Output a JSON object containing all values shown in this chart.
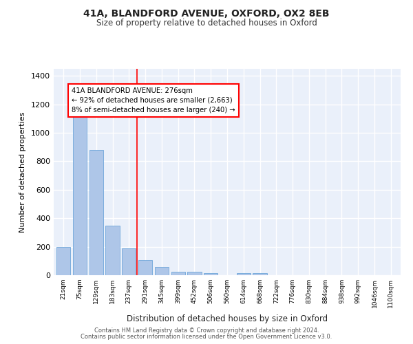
{
  "title1": "41A, BLANDFORD AVENUE, OXFORD, OX2 8EB",
  "title2": "Size of property relative to detached houses in Oxford",
  "xlabel": "Distribution of detached houses by size in Oxford",
  "ylabel": "Number of detached properties",
  "categories": [
    "21sqm",
    "75sqm",
    "129sqm",
    "183sqm",
    "237sqm",
    "291sqm",
    "345sqm",
    "399sqm",
    "452sqm",
    "506sqm",
    "560sqm",
    "614sqm",
    "668sqm",
    "722sqm",
    "776sqm",
    "830sqm",
    "884sqm",
    "938sqm",
    "992sqm",
    "1046sqm",
    "1100sqm"
  ],
  "values": [
    196,
    1130,
    880,
    350,
    190,
    108,
    57,
    25,
    22,
    15,
    0,
    15,
    13,
    0,
    0,
    0,
    0,
    0,
    0,
    0,
    0
  ],
  "bar_color": "#aec6e8",
  "bar_edgecolor": "#5b9bd5",
  "vline_color": "red",
  "annotation_title": "41A BLANDFORD AVENUE: 276sqm",
  "annotation_line1": "← 92% of detached houses are smaller (2,663)",
  "annotation_line2": "8% of semi-detached houses are larger (240) →",
  "ylim": [
    0,
    1450
  ],
  "yticks": [
    0,
    200,
    400,
    600,
    800,
    1000,
    1200,
    1400
  ],
  "background_color": "#eaf0fa",
  "grid_color": "#ffffff",
  "footer1": "Contains HM Land Registry data © Crown copyright and database right 2024.",
  "footer2": "Contains public sector information licensed under the Open Government Licence v3.0."
}
